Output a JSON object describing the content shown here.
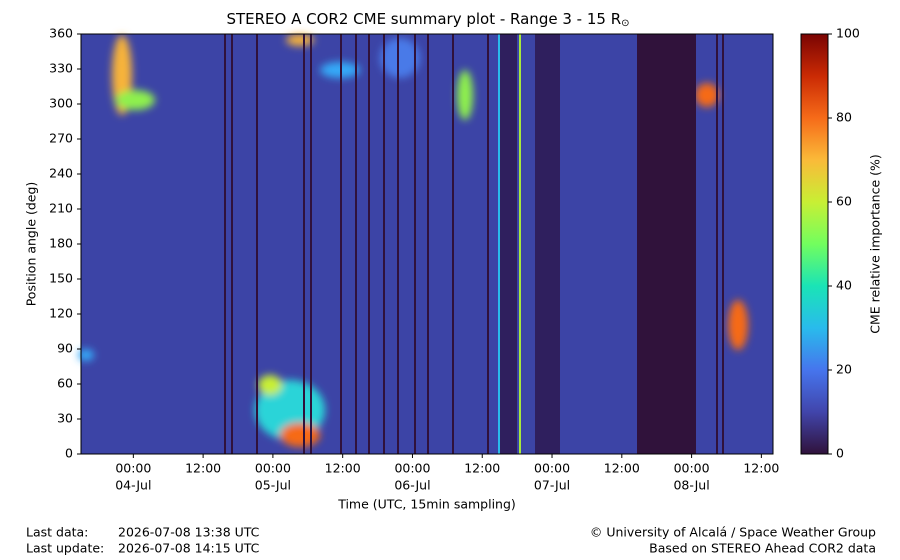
{
  "chart_data": {
    "type": "heatmap",
    "title": "STEREO A COR2 CME summary plot - Range 3 - 15 R",
    "title_subscript": "⊙",
    "xlabel": "Time (UTC, 15min sampling)",
    "ylabel": "Position angle (deg)",
    "ylim": [
      360,
      0
    ],
    "yticks": [
      0,
      30,
      60,
      90,
      120,
      150,
      180,
      210,
      240,
      270,
      300,
      330,
      360
    ],
    "xlim": [
      -9,
      110
    ],
    "xticks": [
      {
        "value": 0,
        "label": "00:00"
      },
      {
        "value": 12,
        "label": "12:00"
      },
      {
        "value": 24,
        "label": "00:00"
      },
      {
        "value": 36,
        "label": "12:00"
      },
      {
        "value": 48,
        "label": "00:00"
      },
      {
        "value": 60,
        "label": "12:00"
      },
      {
        "value": 72,
        "label": "00:00"
      },
      {
        "value": 84,
        "label": "12:00"
      },
      {
        "value": 96,
        "label": "00:00"
      },
      {
        "value": 108,
        "label": "12:00"
      }
    ],
    "xtick_dates": [
      "04-Jul",
      null,
      "05-Jul",
      null,
      "06-Jul",
      null,
      "07-Jul",
      null,
      "08-Jul",
      null
    ],
    "colorbar": {
      "label": "CME relative importance (%)",
      "lim": [
        0,
        100
      ],
      "ticks": [
        0,
        20,
        40,
        60,
        80,
        100
      ]
    }
  },
  "footer": {
    "last_data_label": "Last data:",
    "last_data": "2026-07-08 13:38 UTC",
    "last_update_label": "Last update:",
    "last_update": "2026-07-08 14:15 UTC",
    "credit": "© University of Alcalá / Space Weather Group",
    "source": "Based on STEREO Ahead COR2 data"
  }
}
